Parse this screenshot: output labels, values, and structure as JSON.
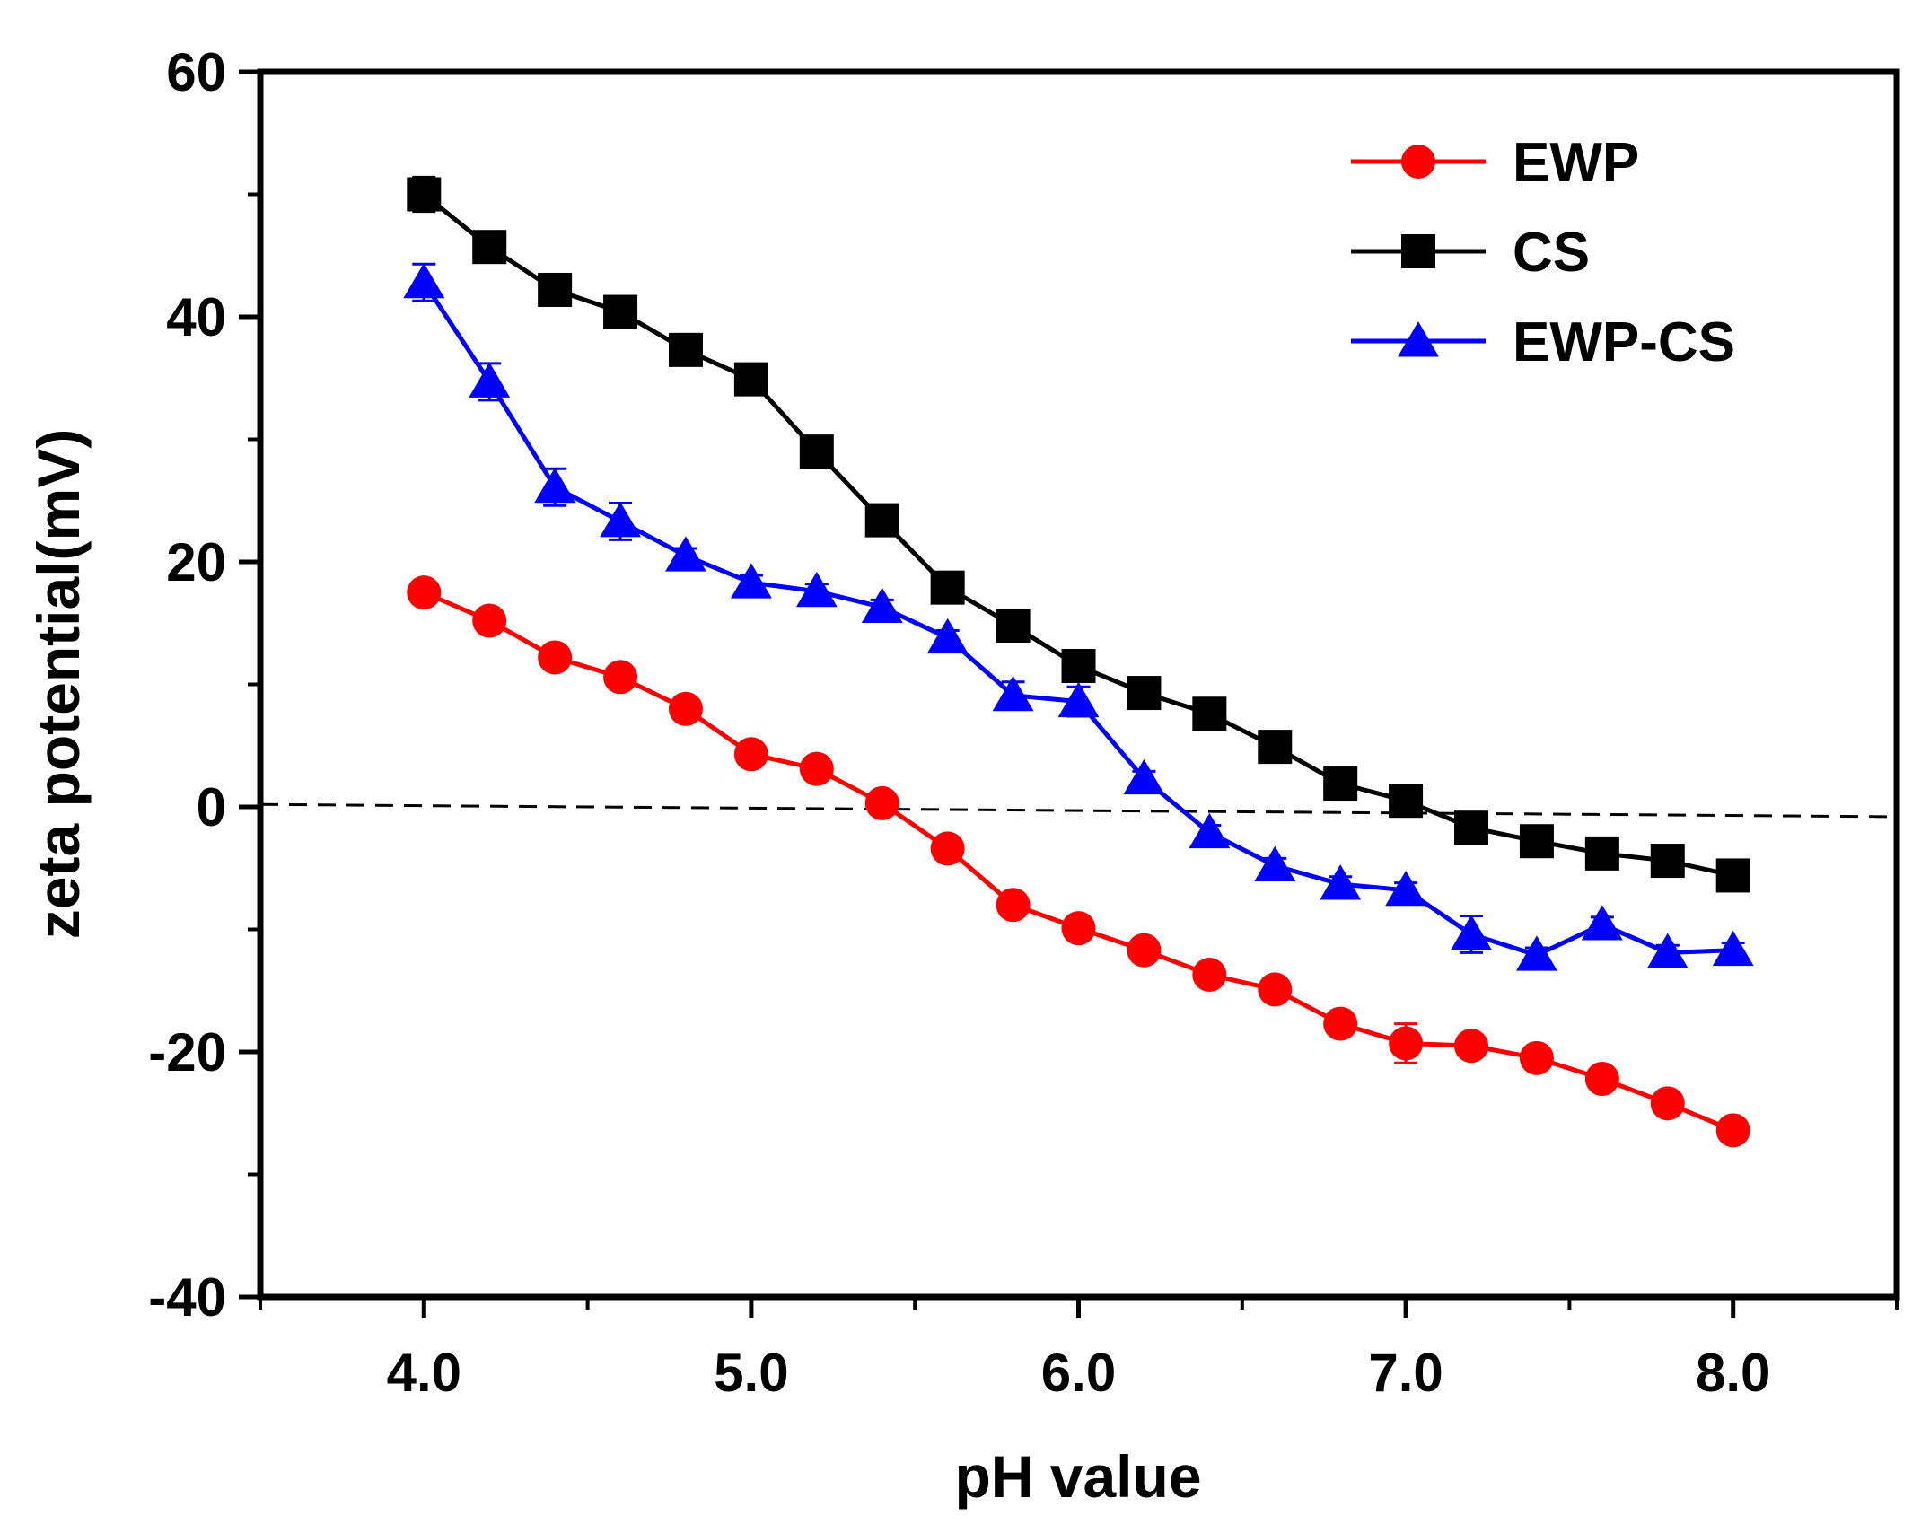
{
  "chart_data": {
    "type": "line",
    "title": "",
    "xlabel": "pH value",
    "ylabel": "zeta potential(mV)",
    "xlim": [
      3.5,
      8.5
    ],
    "ylim": [
      -40,
      60
    ],
    "xticks": [
      4.0,
      5.0,
      6.0,
      7.0,
      8.0
    ],
    "xtick_labels": [
      "4.0",
      "5.0",
      "6.0",
      "7.0",
      "8.0"
    ],
    "yticks": [
      -40,
      -20,
      0,
      20,
      40,
      60
    ],
    "ytick_labels": [
      "-40",
      "-20",
      "0",
      "20",
      "40",
      "60"
    ],
    "grid": false,
    "legend_position": "top-right",
    "reference_line": {
      "y_start": 0.2,
      "y_end": -0.8,
      "style": "dashed",
      "color": "#000000"
    },
    "x": [
      4.0,
      4.2,
      4.4,
      4.6,
      4.8,
      5.0,
      5.2,
      5.4,
      5.6,
      5.8,
      6.0,
      6.2,
      6.4,
      6.6,
      6.8,
      7.0,
      7.2,
      7.4,
      7.6,
      7.8,
      8.0
    ],
    "series": [
      {
        "name": "EWP",
        "color": "#ff0000",
        "marker": "circle",
        "values": [
          17.5,
          15.2,
          12.2,
          10.6,
          8.0,
          4.3,
          3.1,
          0.3,
          -3.4,
          -8.0,
          -9.9,
          -11.7,
          -13.7,
          -14.9,
          -17.7,
          -19.3,
          -19.5,
          -20.5,
          -22.2,
          -24.2,
          -26.4
        ],
        "errors": [
          0.5,
          0.5,
          0.5,
          0.5,
          0.5,
          0.5,
          0.5,
          0.5,
          0.5,
          0.5,
          0.5,
          0.5,
          0.5,
          0.5,
          0.5,
          1.6,
          0.5,
          0.5,
          0.5,
          0.5,
          0.5
        ]
      },
      {
        "name": "CS",
        "color": "#000000",
        "marker": "square",
        "values": [
          50.0,
          45.7,
          42.2,
          40.4,
          37.3,
          34.9,
          29.0,
          23.4,
          17.9,
          14.8,
          11.5,
          9.3,
          7.6,
          4.9,
          1.9,
          0.5,
          -1.7,
          -2.8,
          -3.8,
          -4.4,
          -5.6
        ],
        "errors": [
          1.4,
          0.6,
          0.6,
          0.6,
          0.6,
          0.6,
          0.6,
          0.6,
          0.6,
          0.6,
          0.6,
          0.6,
          0.6,
          0.6,
          0.6,
          0.6,
          0.6,
          0.6,
          0.6,
          0.6,
          0.6
        ]
      },
      {
        "name": "EWP-CS",
        "color": "#0000ff",
        "marker": "triangle",
        "values": [
          42.8,
          34.7,
          26.1,
          23.3,
          20.5,
          18.3,
          17.6,
          16.3,
          13.8,
          9.1,
          8.6,
          2.3,
          -2.1,
          -4.8,
          -6.3,
          -6.8,
          -10.4,
          -12.1,
          -9.6,
          -11.9,
          -11.7
        ],
        "errors": [
          1.5,
          1.5,
          1.5,
          1.5,
          0.6,
          0.6,
          0.6,
          0.6,
          0.6,
          1.1,
          1.2,
          0.6,
          0.6,
          0.6,
          0.6,
          0.6,
          1.5,
          0.6,
          0.6,
          0.6,
          0.6
        ]
      }
    ]
  }
}
